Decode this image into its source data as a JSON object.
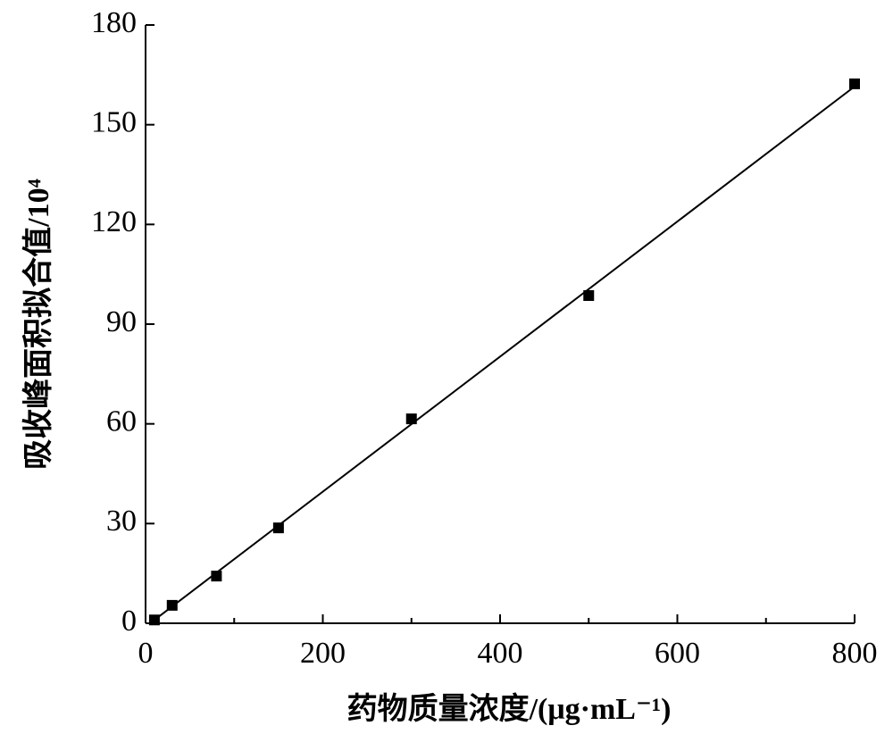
{
  "chart_data": {
    "type": "scatter",
    "x_label": "药物质量浓度/(μg·mL⁻¹)",
    "y_label": "吸收峰面积拟合值/10⁴",
    "xlim": [
      0,
      800
    ],
    "xticks": [
      0,
      200,
      400,
      600,
      800
    ],
    "xminorticks": [
      100,
      300,
      500,
      700
    ],
    "ylim": [
      0,
      180
    ],
    "yticks": [
      0,
      30,
      60,
      90,
      120,
      150,
      180
    ],
    "series": [
      {
        "color": "#000000",
        "marker": "square",
        "x": [
          10,
          30,
          80,
          150,
          300,
          500,
          800
        ],
        "values": [
          1,
          5.4,
          14.2,
          28.7,
          61.5,
          98.6,
          162.3
        ]
      },
      {
        "color": "#000000",
        "marker": "none",
        "x": [
          10,
          800
        ],
        "values": [
          1,
          161.5
        ]
      }
    ]
  }
}
